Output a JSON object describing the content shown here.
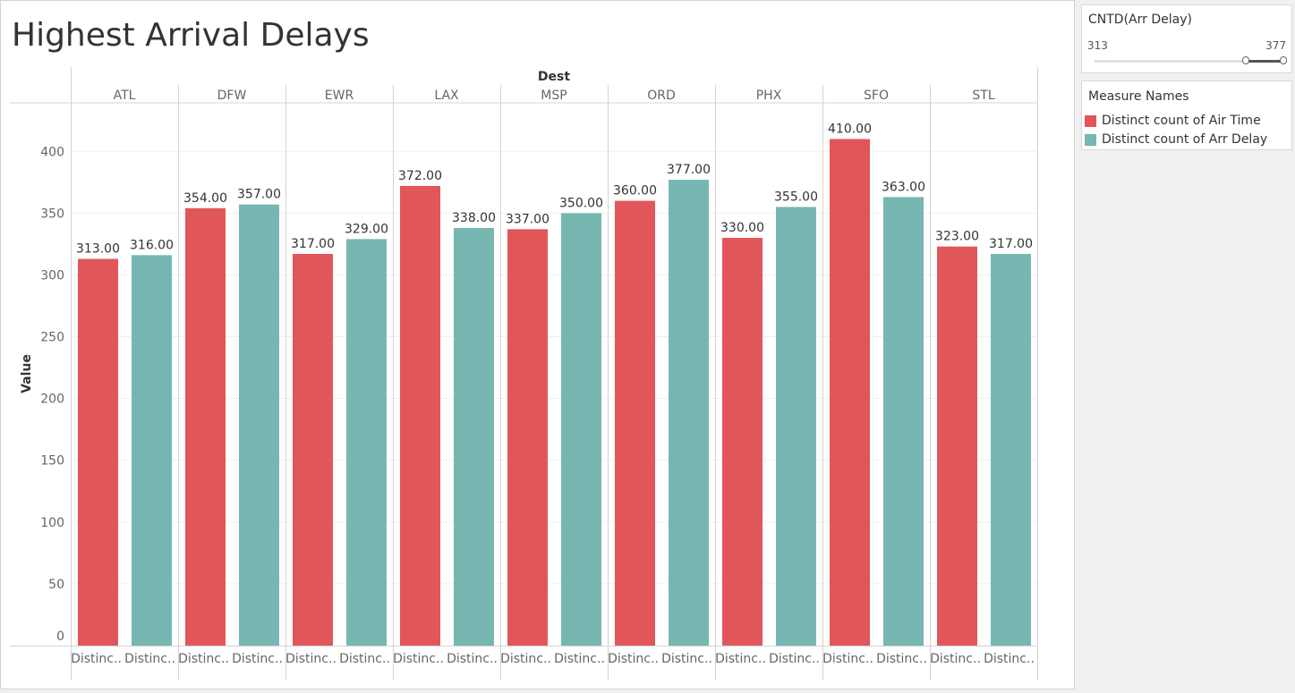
{
  "title": "Highest Arrival Delays",
  "filter": {
    "title": "CNTD(Arr Delay)",
    "min_label": "313",
    "max_label": "377"
  },
  "legend": {
    "title": "Measure Names",
    "items": [
      {
        "label": "Distinct count of Air Time",
        "color": "#e15759"
      },
      {
        "label": "Distinct count of Arr Delay",
        "color": "#76b7b2"
      }
    ]
  },
  "chart_data": {
    "type": "bar",
    "column_header": "Dest",
    "categories": [
      "ATL",
      "DFW",
      "EWR",
      "LAX",
      "MSP",
      "ORD",
      "PHX",
      "SFO",
      "STL"
    ],
    "bar_labels": [
      "Distinc..",
      "Distinc.."
    ],
    "series": [
      {
        "name": "Distinct count of Air Time",
        "color": "#e15759",
        "values": [
          313,
          354,
          317,
          372,
          337,
          360,
          330,
          410,
          323
        ]
      },
      {
        "name": "Distinct count of Arr Delay",
        "color": "#76b7b2",
        "values": [
          316,
          357,
          329,
          338,
          350,
          377,
          355,
          363,
          317
        ]
      }
    ],
    "ylabel": "Value",
    "ylim": [
      0,
      440
    ],
    "yticks": [
      0,
      50,
      100,
      150,
      200,
      250,
      300,
      350,
      400
    ],
    "value_format": "2dp",
    "grid": true
  }
}
